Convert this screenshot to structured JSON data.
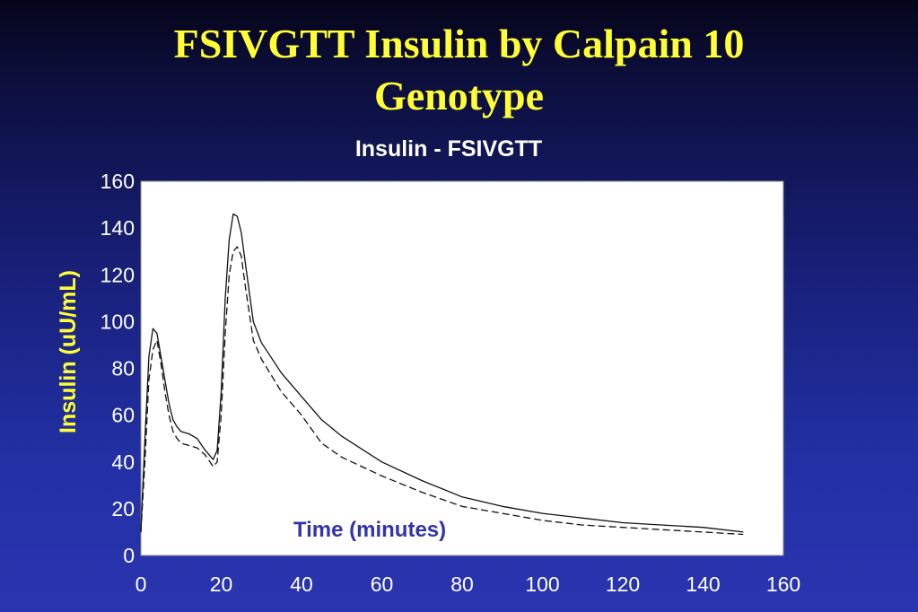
{
  "slide": {
    "title_line1": "FSIVGTT Insulin by Calpain 10",
    "title_line2": "Genotype"
  },
  "colors": {
    "title": "#ffff33",
    "chart_title": "#ffffff",
    "ylabel": "#ffff33",
    "xlabel": "#3333aa",
    "ticks": "#ffffff",
    "plot_bg": "#ffffff",
    "series": "#111111"
  },
  "chart_data": {
    "type": "line",
    "title": "Insulin - FSIVGTT",
    "xlabel": "Time (minutes)",
    "ylabel": "Insulin (uU/mL)",
    "xlim": [
      0,
      160
    ],
    "ylim": [
      0,
      160
    ],
    "xticks": [
      0,
      20,
      40,
      60,
      80,
      100,
      120,
      140,
      160
    ],
    "yticks": [
      0,
      20,
      40,
      60,
      80,
      100,
      120,
      140,
      160
    ],
    "grid": false,
    "legend": "none",
    "series": [
      {
        "style": "solid",
        "points": [
          [
            0,
            10
          ],
          [
            1,
            50
          ],
          [
            2,
            85
          ],
          [
            3,
            97
          ],
          [
            4,
            95
          ],
          [
            5,
            85
          ],
          [
            6,
            75
          ],
          [
            7,
            65
          ],
          [
            8,
            58
          ],
          [
            9,
            55
          ],
          [
            10,
            53
          ],
          [
            12,
            52
          ],
          [
            14,
            50
          ],
          [
            16,
            45
          ],
          [
            18,
            41
          ],
          [
            19,
            45
          ],
          [
            20,
            70
          ],
          [
            21,
            110
          ],
          [
            22,
            135
          ],
          [
            23,
            146
          ],
          [
            24,
            145
          ],
          [
            25,
            138
          ],
          [
            26,
            125
          ],
          [
            28,
            100
          ],
          [
            30,
            91
          ],
          [
            35,
            78
          ],
          [
            40,
            68
          ],
          [
            45,
            58
          ],
          [
            50,
            51
          ],
          [
            60,
            40
          ],
          [
            70,
            32
          ],
          [
            80,
            25
          ],
          [
            90,
            21
          ],
          [
            100,
            18
          ],
          [
            110,
            16
          ],
          [
            120,
            14
          ],
          [
            130,
            13
          ],
          [
            140,
            12
          ],
          [
            150,
            10
          ]
        ]
      },
      {
        "style": "dashed",
        "points": [
          [
            0,
            10
          ],
          [
            1,
            40
          ],
          [
            2,
            75
          ],
          [
            3,
            88
          ],
          [
            4,
            92
          ],
          [
            5,
            82
          ],
          [
            6,
            70
          ],
          [
            7,
            60
          ],
          [
            8,
            53
          ],
          [
            9,
            50
          ],
          [
            10,
            48
          ],
          [
            12,
            47
          ],
          [
            14,
            46
          ],
          [
            16,
            43
          ],
          [
            18,
            38
          ],
          [
            19,
            40
          ],
          [
            20,
            60
          ],
          [
            21,
            95
          ],
          [
            22,
            120
          ],
          [
            23,
            130
          ],
          [
            24,
            132
          ],
          [
            25,
            128
          ],
          [
            26,
            115
          ],
          [
            28,
            92
          ],
          [
            30,
            84
          ],
          [
            35,
            70
          ],
          [
            40,
            60
          ],
          [
            45,
            48
          ],
          [
            50,
            42
          ],
          [
            60,
            34
          ],
          [
            70,
            27
          ],
          [
            80,
            21
          ],
          [
            90,
            18
          ],
          [
            100,
            15
          ],
          [
            110,
            13
          ],
          [
            120,
            12
          ],
          [
            130,
            11
          ],
          [
            140,
            10
          ],
          [
            150,
            9
          ]
        ]
      }
    ]
  }
}
